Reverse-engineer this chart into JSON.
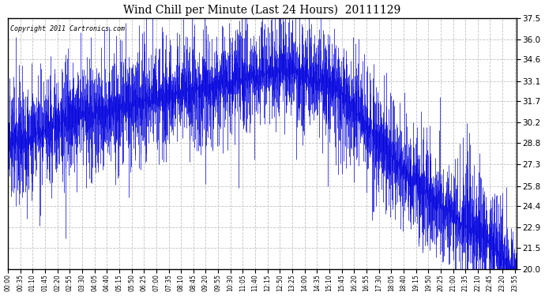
{
  "title": "Wind Chill per Minute (Last 24 Hours)  20111129",
  "copyright": "Copyright 2011 Cartronics.com",
  "yticks": [
    20.0,
    21.5,
    22.9,
    24.4,
    25.8,
    27.3,
    28.8,
    30.2,
    31.7,
    33.1,
    34.6,
    36.0,
    37.5
  ],
  "ylim": [
    20.0,
    37.5
  ],
  "line_color": "#0000dd",
  "bg_color": "#ffffff",
  "grid_color": "#bbbbbb",
  "title_color": "#000000",
  "copyright_color": "#000000",
  "bar_color": "#0000dd",
  "seed": 12345
}
